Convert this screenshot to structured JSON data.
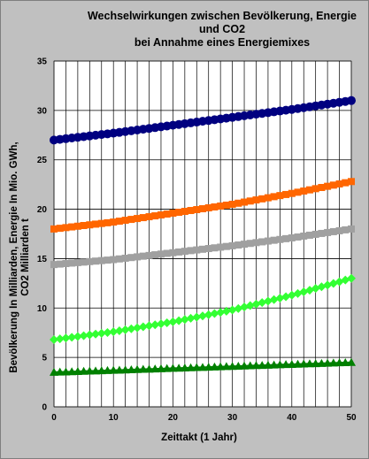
{
  "chart_data": {
    "type": "line",
    "title_lines": [
      "Wechselwirkungen zwischen Bevölkerung, Energie",
      "und CO2",
      "bei Annahme eines Energiemixes"
    ],
    "xlabel": "Zeittakt (1 Jahr)",
    "ylabel_lines": [
      "Bevölkerung In Milliarden, Energie In Mio. GWh,",
      "CO2 Milliarden t"
    ],
    "xlim": [
      0,
      50
    ],
    "ylim": [
      0,
      35
    ],
    "xticks": [
      0,
      10,
      20,
      30,
      40,
      50
    ],
    "yticks": [
      0,
      5,
      10,
      15,
      20,
      25,
      30,
      35
    ],
    "grid": true,
    "legend": "none",
    "x": {
      "start": 0,
      "end": 50,
      "step": 1
    },
    "series": [
      {
        "color": "#000080",
        "marker": "circle",
        "values_at_ticks": {
          "0": 27.0,
          "10": 27.7,
          "20": 28.5,
          "30": 29.3,
          "40": 30.1,
          "50": 31.0
        }
      },
      {
        "color": "#ff6600",
        "marker": "square",
        "values_at_ticks": {
          "0": 18.0,
          "10": 18.7,
          "20": 19.6,
          "30": 20.5,
          "40": 21.6,
          "50": 22.8
        }
      },
      {
        "color": "#a0a0a0",
        "marker": "square",
        "values_at_ticks": {
          "0": 14.4,
          "10": 14.9,
          "20": 15.6,
          "30": 16.3,
          "40": 17.1,
          "50": 18.0
        }
      },
      {
        "color": "#33ff33",
        "marker": "diamond",
        "values_at_ticks": {
          "0": 6.8,
          "10": 7.6,
          "20": 8.6,
          "30": 9.8,
          "40": 11.3,
          "50": 13.0
        }
      },
      {
        "color": "#008000",
        "marker": "triangle",
        "values_at_ticks": {
          "0": 3.5,
          "10": 3.7,
          "20": 3.9,
          "30": 4.1,
          "40": 4.3,
          "50": 4.5
        }
      }
    ]
  }
}
